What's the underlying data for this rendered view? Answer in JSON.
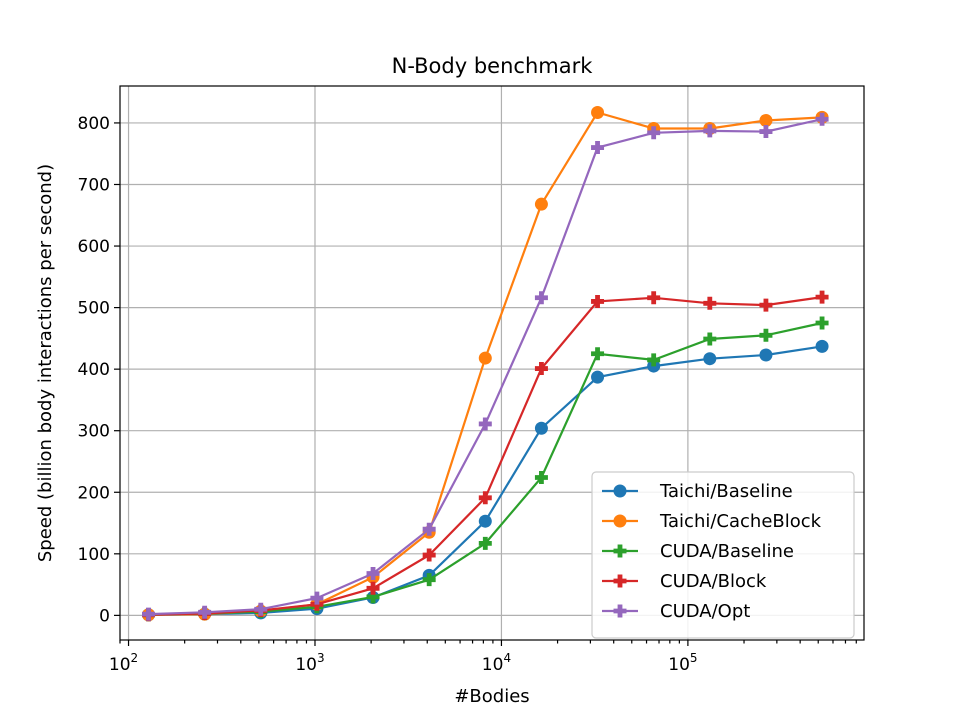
{
  "chart_data": {
    "type": "line",
    "title": "N-Body benchmark",
    "xlabel": "#Bodies",
    "ylabel": "Speed (billion body interactions per second)",
    "xscale": "log",
    "xlim": [
      90,
      880000
    ],
    "ylim": [
      -40,
      860
    ],
    "yticks": [
      0,
      100,
      200,
      300,
      400,
      500,
      600,
      700,
      800
    ],
    "xticks": [
      {
        "value": 100,
        "base": "10",
        "exp": "2"
      },
      {
        "value": 1000,
        "base": "10",
        "exp": "3"
      },
      {
        "value": 10000,
        "base": "10",
        "exp": "4"
      },
      {
        "value": 100000,
        "base": "10",
        "exp": "5"
      }
    ],
    "grid": true,
    "legend_position": "lower-right",
    "x": [
      128,
      256,
      512,
      1024,
      2048,
      4096,
      8192,
      16384,
      32768,
      65536,
      131072,
      262144,
      524288
    ],
    "series": [
      {
        "name": "Taichi/Baseline",
        "color": "#1f77b4",
        "marker": "circle",
        "values": [
          1,
          2,
          4,
          11,
          29,
          65,
          153,
          304,
          387,
          405,
          417,
          423,
          437
        ]
      },
      {
        "name": "Taichi/CacheBlock",
        "color": "#ff7f0e",
        "marker": "circle",
        "values": [
          1,
          2,
          7,
          18,
          62,
          135,
          418,
          668,
          817,
          791,
          791,
          804,
          809
        ]
      },
      {
        "name": "CUDA/Baseline",
        "color": "#2ca02c",
        "marker": "plus",
        "values": [
          1,
          3,
          6,
          14,
          30,
          58,
          117,
          224,
          425,
          415,
          449,
          455,
          475
        ]
      },
      {
        "name": "CUDA/Block",
        "color": "#d62728",
        "marker": "plus",
        "values": [
          1,
          3,
          8,
          18,
          44,
          98,
          191,
          401,
          510,
          516,
          507,
          504,
          517
        ]
      },
      {
        "name": "CUDA/Opt",
        "color": "#9467bd",
        "marker": "plus",
        "values": [
          2,
          5,
          10,
          28,
          68,
          140,
          311,
          516,
          760,
          784,
          787,
          786,
          806
        ]
      }
    ]
  }
}
